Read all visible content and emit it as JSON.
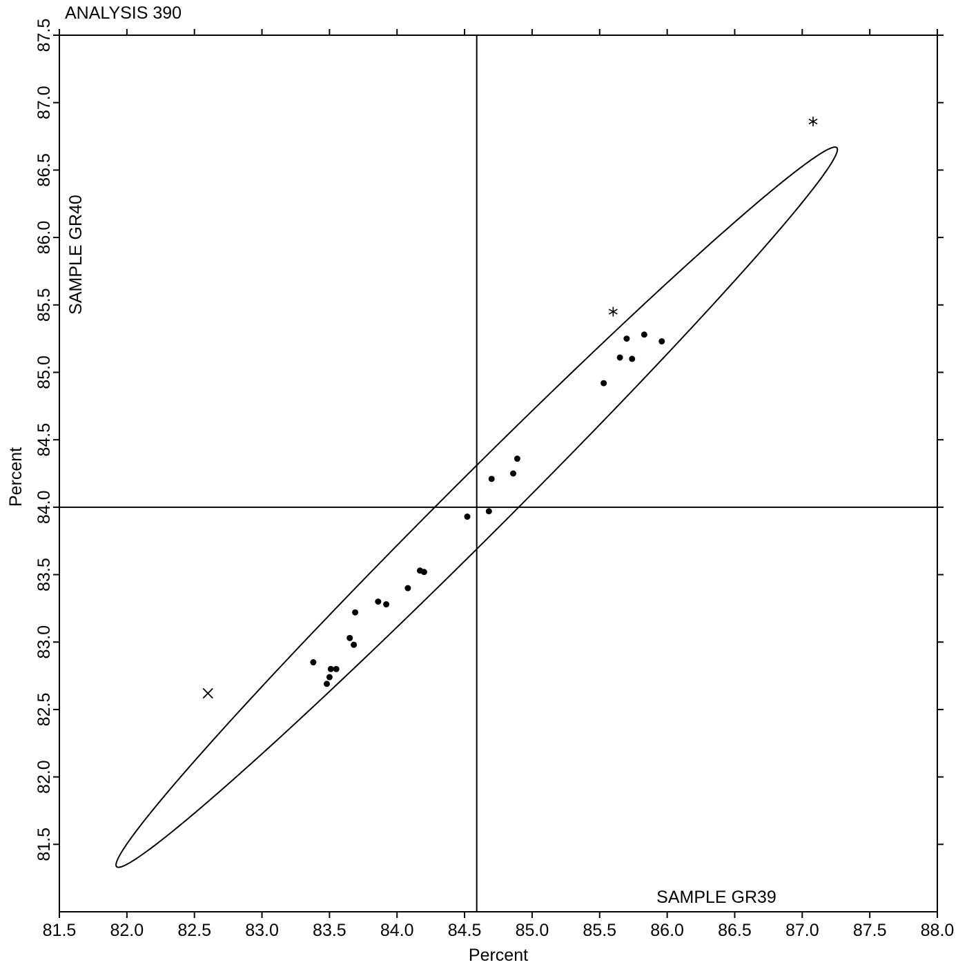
{
  "chart_data": {
    "type": "scatter",
    "title": "ANALYSIS 390",
    "xlabel": "Percent",
    "ylabel": "Percent",
    "annotations": {
      "x_sample": "SAMPLE GR39",
      "y_sample": "SAMPLE GR40"
    },
    "xlim": [
      81.5,
      88.0
    ],
    "ylim": [
      81.0,
      87.5
    ],
    "x_ticks": [
      "81.5",
      "82.0",
      "82.5",
      "83.0",
      "83.5",
      "84.0",
      "84.5",
      "85.0",
      "85.5",
      "86.0",
      "86.5",
      "87.0",
      "87.5",
      "88.0"
    ],
    "y_ticks": [
      "81.5",
      "82.0",
      "82.5",
      "83.0",
      "83.5",
      "84.0",
      "84.5",
      "85.0",
      "85.5",
      "86.0",
      "86.5",
      "87.0",
      "87.5"
    ],
    "reference_lines": {
      "x": 84.59,
      "y": 84.0
    },
    "ellipse": {
      "center": [
        84.59,
        84.0
      ],
      "angle_deg": 45,
      "semi_major": 3.77,
      "semi_minor": 0.22
    },
    "series": [
      {
        "marker": "dot",
        "x": [
          83.38,
          83.48,
          83.5,
          83.51,
          83.55,
          83.65,
          83.68,
          83.69,
          83.86,
          83.92,
          84.08,
          84.17,
          84.2,
          84.52,
          84.68,
          84.7,
          84.86,
          84.89,
          85.53,
          85.65,
          85.7,
          85.74,
          85.83,
          85.96
        ],
        "y": [
          82.85,
          82.69,
          82.74,
          82.8,
          82.8,
          83.03,
          82.98,
          83.22,
          83.3,
          83.28,
          83.4,
          83.53,
          83.52,
          83.93,
          83.97,
          84.21,
          84.25,
          84.36,
          84.92,
          85.11,
          85.25,
          85.1,
          85.28,
          85.23
        ]
      },
      {
        "marker": "asterisk",
        "x": [
          85.6,
          87.08
        ],
        "y": [
          85.45,
          86.86
        ]
      },
      {
        "marker": "cross",
        "x": [
          82.6
        ],
        "y": [
          82.62
        ]
      }
    ]
  }
}
